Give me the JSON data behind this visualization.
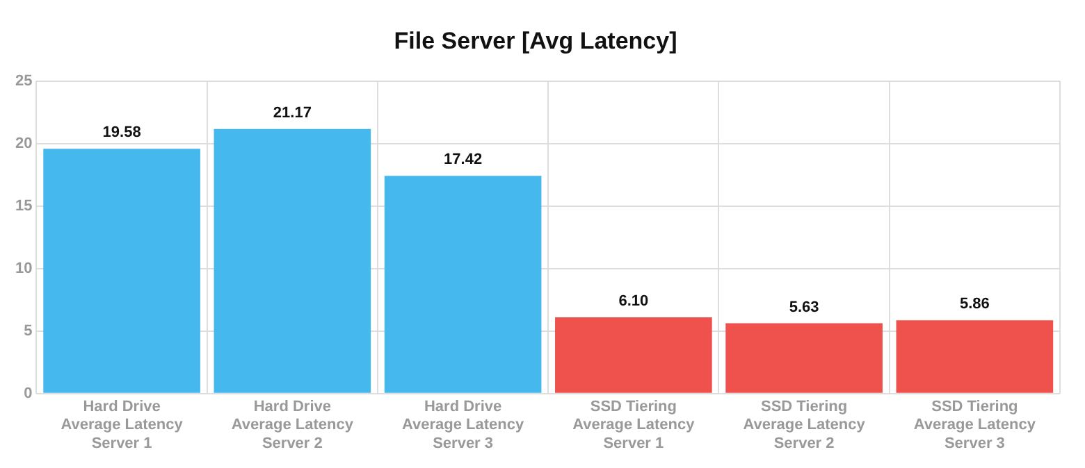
{
  "chart_data": {
    "type": "bar",
    "title": "File Server [Avg Latency]",
    "categories": [
      "Hard Drive Average Latency Server 1",
      "Hard Drive Average Latency Server 2",
      "Hard Drive Average Latency Server 3",
      "SSD Tiering Average Latency Server 1",
      "SSD Tiering Average Latency Server 2",
      "SSD Tiering Average Latency Server 3"
    ],
    "values": [
      19.58,
      21.17,
      17.42,
      6.1,
      5.63,
      5.86
    ],
    "value_labels": [
      "19.58",
      "21.17",
      "17.42",
      "6.10",
      "5.63",
      "5.86"
    ],
    "colors": [
      "#45b8ee",
      "#45b8ee",
      "#45b8ee",
      "#ef524d",
      "#ef524d",
      "#ef524d"
    ],
    "ylim": [
      0,
      25
    ],
    "yticks": [
      0,
      5,
      10,
      15,
      20,
      25
    ],
    "grid": true
  }
}
